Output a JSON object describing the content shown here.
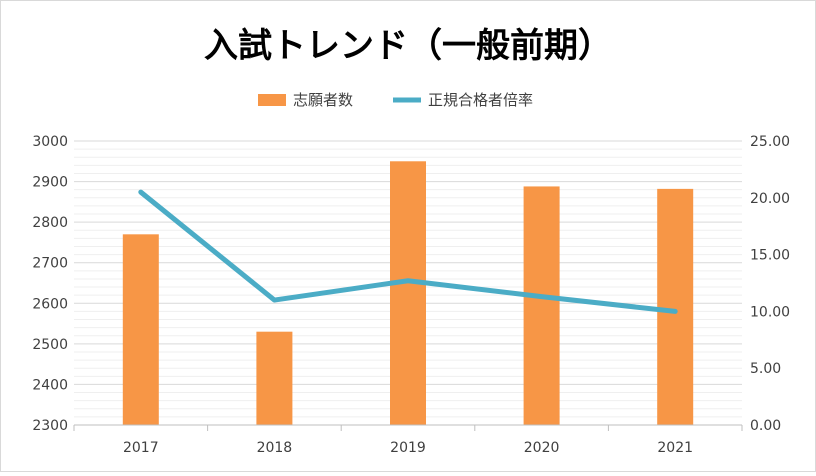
{
  "chart_data": {
    "type": "bar+line",
    "title": "入試トレンド（一般前期）",
    "categories": [
      "2017",
      "2018",
      "2019",
      "2020",
      "2021"
    ],
    "series": [
      {
        "name": "志願者数",
        "type": "bar",
        "axis": "left",
        "color": "#F79646",
        "values": [
          2770,
          2530,
          2950,
          2888,
          2882
        ]
      },
      {
        "name": "正規合格者倍率",
        "type": "line",
        "axis": "right",
        "color": "#4BACC6",
        "values": [
          20.5,
          11.0,
          12.7,
          11.3,
          10.0
        ]
      }
    ],
    "y_left": {
      "min": 2300,
      "max": 3000,
      "step": 100,
      "ticks": [
        "2300",
        "2400",
        "2500",
        "2600",
        "2700",
        "2800",
        "2900",
        "3000"
      ]
    },
    "y_right": {
      "min": 0,
      "max": 25,
      "step": 5,
      "ticks": [
        "0.00",
        "5.00",
        "10.00",
        "15.00",
        "20.00",
        "25.00"
      ]
    },
    "grid": true,
    "legend_position": "top"
  }
}
